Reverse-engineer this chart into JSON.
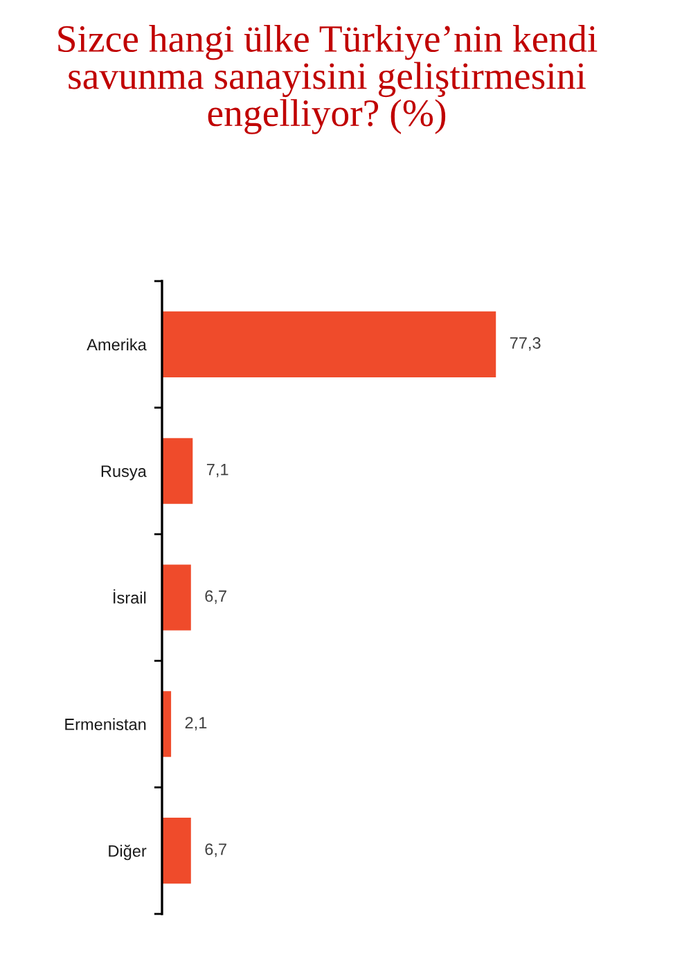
{
  "chart_data": {
    "type": "bar",
    "orientation": "horizontal",
    "title": "Sizce hangi ülke Türkiye’nin kendi savunma sanayisini geliştirmesini engelliyor? (%)",
    "categories": [
      "Amerika",
      "Rusya",
      "İsrail",
      "Ermenistan",
      "Diğer"
    ],
    "values": [
      77.3,
      7.1,
      6.7,
      2.1,
      6.7
    ],
    "color": "#ef4b2b",
    "value_labels": [
      "77,3",
      "7,1",
      "6,7",
      "2,1",
      "6,7"
    ]
  }
}
